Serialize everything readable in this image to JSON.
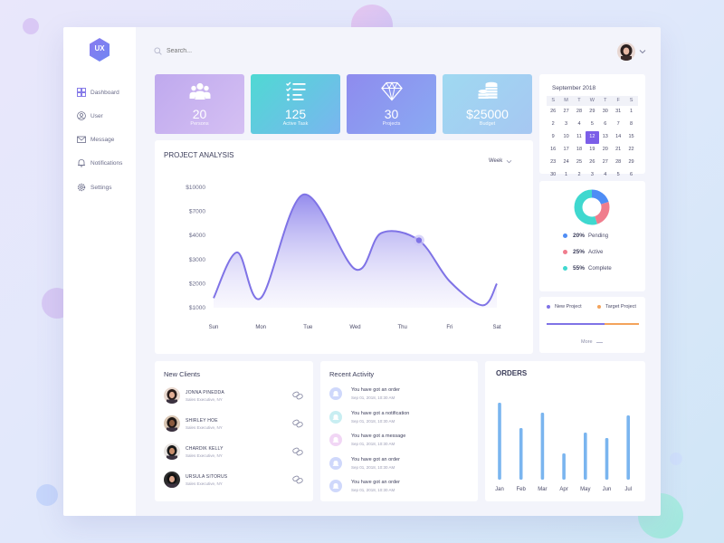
{
  "logo": {
    "text": "UX"
  },
  "sidebar": {
    "items": [
      {
        "label": "Dashboard",
        "icon": "dashboard-icon"
      },
      {
        "label": "User",
        "icon": "user-icon"
      },
      {
        "label": "Message",
        "icon": "mail-icon"
      },
      {
        "label": "Notifications",
        "icon": "bell-icon"
      },
      {
        "label": "Settings",
        "icon": "gear-icon"
      }
    ]
  },
  "search": {
    "placeholder": "Search..."
  },
  "stats": [
    {
      "value": "20",
      "label": "Persons",
      "icon": "people-icon"
    },
    {
      "value": "125",
      "label": "Active Task",
      "icon": "checklist-icon"
    },
    {
      "value": "30",
      "label": "Projects",
      "icon": "diamond-icon"
    },
    {
      "value": "$25000",
      "label": "Budget",
      "icon": "coins-icon"
    }
  ],
  "analysis": {
    "title": "PROJECT ANALYSIS",
    "period": "Week"
  },
  "chart_data": [
    {
      "type": "area",
      "title": "PROJECT ANALYSIS",
      "categories": [
        "Sun",
        "Mon",
        "Tue",
        "Wed",
        "Thu",
        "Fri",
        "Sat"
      ],
      "y_tick_labels": [
        "$10000",
        "$7000",
        "$4000",
        "$3000",
        "$2000",
        "$1000"
      ],
      "y_tick_values": [
        6,
        5,
        4,
        3,
        2,
        1
      ],
      "ylim": [
        1,
        6
      ],
      "x": [
        0,
        0.5,
        1,
        1.9,
        3,
        3.55,
        4.35,
        5,
        5.7,
        6
      ],
      "series": [
        {
          "values": [
            1.4,
            3.3,
            1.4,
            5.7,
            2.6,
            4.1,
            3.8,
            2.1,
            1.1,
            2.0
          ]
        }
      ],
      "highlight_point": {
        "x": 4.35,
        "y": 3.8
      },
      "color": "#7f73e6",
      "grid": false
    },
    {
      "type": "bar",
      "title": "ORDERS",
      "categories": [
        "Jan",
        "Feb",
        "Mar",
        "Apr",
        "May",
        "Jun",
        "Jul"
      ],
      "values": [
        85,
        57,
        74,
        29,
        52,
        46,
        71
      ],
      "ylim": [
        0,
        100
      ],
      "color": "#7ab5ef",
      "grid": false
    },
    {
      "type": "pie",
      "donut": true,
      "slices": [
        {
          "label": "Pending",
          "value": 20,
          "color": "#4f8df5"
        },
        {
          "label": "Active",
          "value": 25,
          "color": "#f07d8d"
        },
        {
          "label": "Complete",
          "value": 55,
          "color": "#3fd8cf"
        }
      ]
    }
  ],
  "calendar": {
    "title": "September 2018",
    "days": [
      "S",
      "M",
      "T",
      "W",
      "T",
      "F",
      "S"
    ],
    "weeks": [
      [
        "26",
        "27",
        "28",
        "29",
        "30",
        "31",
        "1"
      ],
      [
        "2",
        "3",
        "4",
        "5",
        "6",
        "7",
        "8"
      ],
      [
        "9",
        "10",
        "11",
        "12",
        "13",
        "14",
        "15"
      ],
      [
        "16",
        "17",
        "18",
        "19",
        "20",
        "21",
        "22"
      ],
      [
        "23",
        "24",
        "25",
        "26",
        "27",
        "28",
        "29"
      ],
      [
        "30",
        "1",
        "2",
        "3",
        "4",
        "5",
        "6"
      ]
    ],
    "selected": "12",
    "selected_color": "#7b5ee8"
  },
  "status": {
    "items": [
      {
        "percent": "20%",
        "label": "Pending",
        "color": "#4f8df5"
      },
      {
        "percent": "25%",
        "label": "Active",
        "color": "#f07d8d"
      },
      {
        "percent": "55%",
        "label": "Complete",
        "color": "#3fd8cf"
      }
    ]
  },
  "projects": {
    "new_label": "New Project",
    "target_label": "Target Project",
    "new_color": "#7f73e6",
    "target_color": "#f3a35b",
    "more_label": "More"
  },
  "clients": {
    "title": "New Clients",
    "items": [
      {
        "name": "JONNA PINEDDA",
        "role": "Sales Executive, NY"
      },
      {
        "name": "SHIRLEY HOE",
        "role": "Sales Executive, NY"
      },
      {
        "name": "CHARDIK KELLY",
        "role": "Sales Executive, NY"
      },
      {
        "name": "URSULA SITORUS",
        "role": "Sales Executive, NY"
      }
    ]
  },
  "activity": {
    "title": "Recent Activity",
    "items": [
      {
        "text": "You have got an order",
        "date": "Sep 01, 2018, 10:30 AM",
        "color": "#cfd8fb"
      },
      {
        "text": "You have got a notification",
        "date": "Sep 01, 2018, 10:30 AM",
        "color": "#c8eef2"
      },
      {
        "text": "You have got a message",
        "date": "Sep 01, 2018, 10:30 AM",
        "color": "#f1d6f5"
      },
      {
        "text": "You have got an order",
        "date": "Sep 01, 2018, 10:30 AM",
        "color": "#cfd8fb"
      },
      {
        "text": "You have got an order",
        "date": "Sep 01, 2018, 10:30 AM",
        "color": "#cfd8fb"
      }
    ]
  },
  "orders": {
    "title": "ORDERS"
  }
}
